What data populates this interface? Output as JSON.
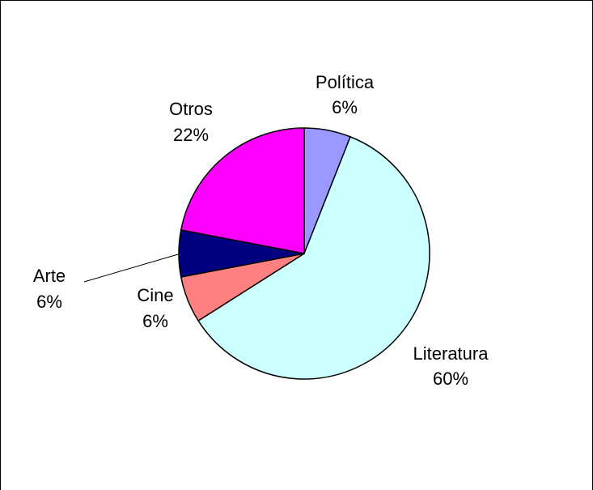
{
  "chart_data": {
    "type": "pie",
    "title": "",
    "slices": [
      {
        "label": "Política",
        "value": 6,
        "value_label": "6%",
        "color": "#9999ff"
      },
      {
        "label": "Literatura",
        "value": 60,
        "value_label": "60%",
        "color": "#ccffff"
      },
      {
        "label": "Cine",
        "value": 6,
        "value_label": "6%",
        "color": "#ff8080"
      },
      {
        "label": "Arte",
        "value": 6,
        "value_label": "6%",
        "color": "#000080"
      },
      {
        "label": "Otros",
        "value": 22,
        "value_label": "22%",
        "color": "#ff00ff"
      }
    ]
  }
}
